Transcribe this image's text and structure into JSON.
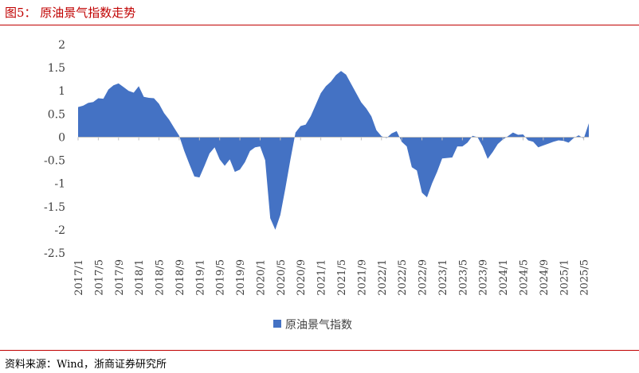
{
  "figure": {
    "title": "图5：  原油景气指数走势",
    "source": "资料来源：Wind，浙商证券研究所"
  },
  "chart_data": {
    "type": "area",
    "ylim": [
      -2.5,
      2
    ],
    "yticks": [
      "2",
      "1.5",
      "1",
      "0.5",
      "0",
      "-0.5",
      "-1",
      "-1.5",
      "-2",
      "-2.5"
    ],
    "ytick_values": [
      2,
      1.5,
      1,
      0.5,
      0,
      -0.5,
      -1,
      -1.5,
      -2,
      -2.5
    ],
    "xtick_labels": [
      "2017/1",
      "2017/5",
      "2017/9",
      "2018/1",
      "2018/5",
      "2018/9",
      "2019/1",
      "2019/5",
      "2019/9",
      "2020/1",
      "2020/5",
      "2020/9",
      "2021/1",
      "2021/5",
      "2021/9",
      "2022/1",
      "2022/5",
      "2022/9",
      "2023/1",
      "2023/5",
      "2023/9",
      "2024/1",
      "2024/5",
      "2024/9",
      "2025/1",
      "2025/5"
    ],
    "legend": "top-center",
    "color": "#4472c4",
    "series": [
      {
        "name": "原油景气指数",
        "x_start": "2017/1",
        "frequency": "monthly",
        "values": [
          0.65,
          0.68,
          0.74,
          0.76,
          0.84,
          0.83,
          1.03,
          1.12,
          1.16,
          1.08,
          1.0,
          0.96,
          1.1,
          0.87,
          0.85,
          0.84,
          0.72,
          0.52,
          0.38,
          0.2,
          0.03,
          -0.3,
          -0.58,
          -0.85,
          -0.87,
          -0.62,
          -0.35,
          -0.22,
          -0.48,
          -0.62,
          -0.48,
          -0.75,
          -0.7,
          -0.54,
          -0.3,
          -0.22,
          -0.2,
          -0.5,
          -1.75,
          -2.0,
          -1.68,
          -1.1,
          -0.48,
          0.1,
          0.24,
          0.27,
          0.45,
          0.7,
          0.95,
          1.1,
          1.2,
          1.34,
          1.43,
          1.35,
          1.15,
          0.95,
          0.75,
          0.62,
          0.45,
          0.15,
          0.02,
          -0.02,
          0.08,
          0.13,
          -0.1,
          -0.2,
          -0.65,
          -0.72,
          -1.2,
          -1.3,
          -1.0,
          -0.75,
          -0.46,
          -0.45,
          -0.44,
          -0.2,
          -0.2,
          -0.12,
          0.03,
          0.0,
          -0.2,
          -0.47,
          -0.32,
          -0.15,
          -0.05,
          0.02,
          0.1,
          0.05,
          0.06,
          -0.07,
          -0.1,
          -0.22,
          -0.18,
          -0.14,
          -0.1,
          -0.07,
          -0.08,
          -0.12,
          -0.02,
          0.04,
          -0.03,
          0.3
        ]
      }
    ]
  }
}
